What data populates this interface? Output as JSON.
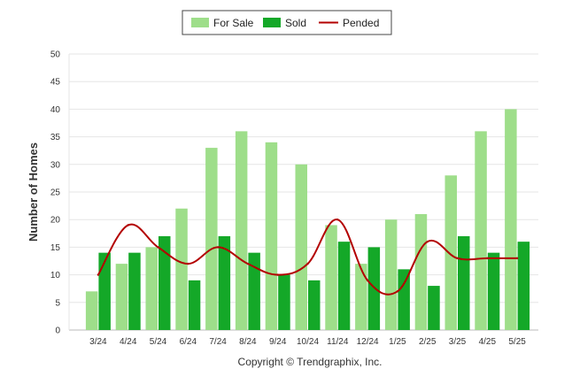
{
  "colors": {
    "for_sale": "#9ede8a",
    "sold": "#14a828",
    "pended": "#b30000",
    "grid": "#e6e6e6",
    "axis": "#bbbbbb"
  },
  "legend": {
    "items": [
      {
        "label": "For Sale",
        "symbol": "rect",
        "color": "#9ede8a"
      },
      {
        "label": "Sold",
        "symbol": "rect",
        "color": "#14a828"
      },
      {
        "label": "Pended",
        "symbol": "line",
        "color": "#b30000"
      }
    ]
  },
  "chart_data": {
    "type": "bar",
    "title": "",
    "xlabel": "",
    "ylabel": "Number of Homes",
    "ylim": [
      0,
      50
    ],
    "yticks": [
      0,
      5,
      10,
      15,
      20,
      25,
      30,
      35,
      40,
      45,
      50
    ],
    "grid": true,
    "legend_position": "top-center",
    "categories": [
      "3/24",
      "4/24",
      "5/24",
      "6/24",
      "7/24",
      "8/24",
      "9/24",
      "10/24",
      "11/24",
      "12/24",
      "1/25",
      "2/25",
      "3/25",
      "4/25",
      "5/25"
    ],
    "series": [
      {
        "name": "For Sale",
        "type": "bar",
        "values": [
          7,
          12,
          15,
          22,
          33,
          36,
          34,
          30,
          19,
          12,
          20,
          21,
          28,
          36,
          40
        ]
      },
      {
        "name": "Sold",
        "type": "bar",
        "values": [
          14,
          14,
          17,
          9,
          17,
          14,
          10,
          9,
          16,
          15,
          11,
          8,
          17,
          14,
          16
        ]
      },
      {
        "name": "Pended",
        "type": "line",
        "values": [
          10,
          19,
          15,
          12,
          15,
          12,
          10,
          12,
          20,
          9,
          7,
          16,
          13,
          13,
          13
        ]
      }
    ]
  },
  "footer": {
    "copyright": "Copyright © Trendgraphix, Inc."
  }
}
